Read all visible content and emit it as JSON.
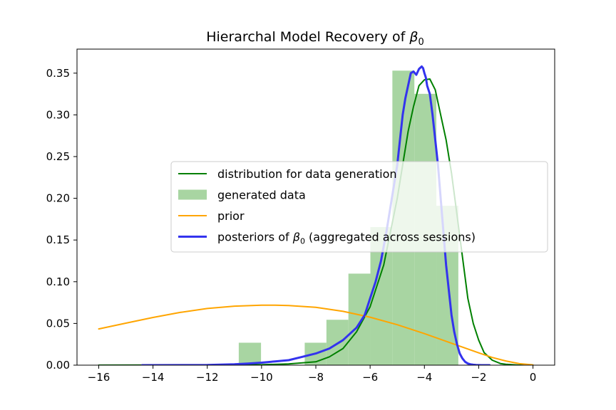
{
  "chart_data": {
    "type": "histogram+line",
    "title": "Hierarchal Model Recovery of β₀",
    "xlabel": "",
    "ylabel": "",
    "xlim": [
      -16.8,
      0.8
    ],
    "ylim": [
      0,
      0.3788
    ],
    "x_ticks": [
      -16,
      -14,
      -12,
      -10,
      -8,
      -6,
      -4,
      -2,
      0
    ],
    "x_tick_labels": [
      "−16",
      "−14",
      "−12",
      "−10",
      "−8",
      "−6",
      "−4",
      "−2",
      "0"
    ],
    "y_ticks": [
      0.0,
      0.05,
      0.1,
      0.15,
      0.2,
      0.25,
      0.3,
      0.35
    ],
    "y_tick_labels": [
      "0.00",
      "0.05",
      "0.10",
      "0.15",
      "0.20",
      "0.25",
      "0.30",
      "0.35"
    ],
    "grid": false,
    "legend_position": "center-right",
    "histogram": {
      "name": "generated data",
      "color": "#a8d5a2",
      "bin_edges": [
        -10.84,
        -10.02,
        -9.21,
        -8.41,
        -7.61,
        -6.8,
        -5.99,
        -5.18,
        -4.37,
        -3.56,
        -2.75
      ],
      "counts": [
        0.0269,
        0.0,
        0.0,
        0.0269,
        0.0544,
        0.1097,
        0.1655,
        0.353,
        0.3252,
        0.191
      ]
    },
    "series": [
      {
        "name": "distribution for data generation",
        "kind": "line",
        "color": "#008000",
        "x": [
          -16,
          -10,
          -9,
          -8,
          -7.5,
          -7,
          -6.5,
          -6,
          -5.5,
          -5,
          -4.8,
          -4.6,
          -4.4,
          -4.2,
          -4.0,
          -3.8,
          -3.6,
          -3.4,
          -3.2,
          -3.0,
          -2.8,
          -2.6,
          -2.4,
          -2.2,
          -2.0,
          -1.8,
          -1.5,
          -1.2,
          -1.0,
          -0.5,
          0
        ],
        "y": [
          0.0,
          0.0005,
          0.0015,
          0.004,
          0.01,
          0.02,
          0.04,
          0.07,
          0.12,
          0.2,
          0.24,
          0.28,
          0.31,
          0.335,
          0.342,
          0.343,
          0.33,
          0.3,
          0.27,
          0.23,
          0.18,
          0.13,
          0.08,
          0.05,
          0.03,
          0.015,
          0.006,
          0.002,
          0.001,
          0.0,
          0.0
        ]
      },
      {
        "name": "prior",
        "kind": "line",
        "color": "#ffa500",
        "x": [
          -16,
          -15,
          -14,
          -13,
          -12,
          -11,
          -10,
          -9.5,
          -9,
          -8,
          -7,
          -6,
          -5,
          -4,
          -3,
          -2,
          -1.5,
          -1,
          -0.5,
          0
        ],
        "y": [
          0.0434,
          0.0503,
          0.0572,
          0.0632,
          0.0679,
          0.0707,
          0.0718,
          0.0718,
          0.0715,
          0.0693,
          0.0645,
          0.0575,
          0.0485,
          0.0378,
          0.0263,
          0.0148,
          0.0092,
          0.005,
          0.0018,
          0.0003
        ]
      },
      {
        "name": "posteriors of β₀ (aggregated across sessions)",
        "kind": "line",
        "color": "#3333ee",
        "x": [
          -14.4,
          -12,
          -11,
          -10.5,
          -10,
          -9.5,
          -9,
          -8.5,
          -8,
          -7.5,
          -7,
          -6.5,
          -6.2,
          -6,
          -5.8,
          -5.6,
          -5.4,
          -5.2,
          -5.0,
          -4.9,
          -4.8,
          -4.7,
          -4.6,
          -4.5,
          -4.4,
          -4.3,
          -4.2,
          -4.1,
          -4.05,
          -4.0,
          -3.95,
          -3.9,
          -3.8,
          -3.7,
          -3.6,
          -3.5,
          -3.4,
          -3.3,
          -3.2,
          -3.1,
          -3.0,
          -2.9,
          -2.8,
          -2.7,
          -2.6,
          -2.5,
          -2.4,
          -2.3,
          -2.2,
          -2.1,
          -2.0,
          -1.9,
          -1.8,
          -1.7,
          -1.6
        ],
        "y": [
          0.0,
          0.0002,
          0.001,
          0.002,
          0.003,
          0.0045,
          0.006,
          0.01,
          0.014,
          0.02,
          0.03,
          0.045,
          0.06,
          0.08,
          0.1,
          0.125,
          0.16,
          0.2,
          0.24,
          0.27,
          0.3,
          0.32,
          0.335,
          0.35,
          0.352,
          0.348,
          0.355,
          0.358,
          0.356,
          0.35,
          0.345,
          0.335,
          0.325,
          0.3,
          0.27,
          0.24,
          0.2,
          0.16,
          0.12,
          0.09,
          0.06,
          0.04,
          0.025,
          0.014,
          0.008,
          0.004,
          0.002,
          0.001,
          0.0005,
          0.0002,
          0.0001,
          0.0,
          0.0,
          0.0,
          0.0
        ]
      }
    ],
    "legend": [
      {
        "label_prefix": "distribution for data generation",
        "label_suffix": "",
        "symbol": "line",
        "color": "#008000"
      },
      {
        "label_prefix": "generated data",
        "label_suffix": "",
        "symbol": "patch",
        "color": "#a8d5a2"
      },
      {
        "label_prefix": "prior",
        "label_suffix": "",
        "symbol": "line",
        "color": "#ffa500"
      },
      {
        "label_prefix": "posteriors of ",
        "label_suffix": " (aggregated across sessions)",
        "symbol": "line",
        "color": "#3333ee"
      }
    ]
  }
}
